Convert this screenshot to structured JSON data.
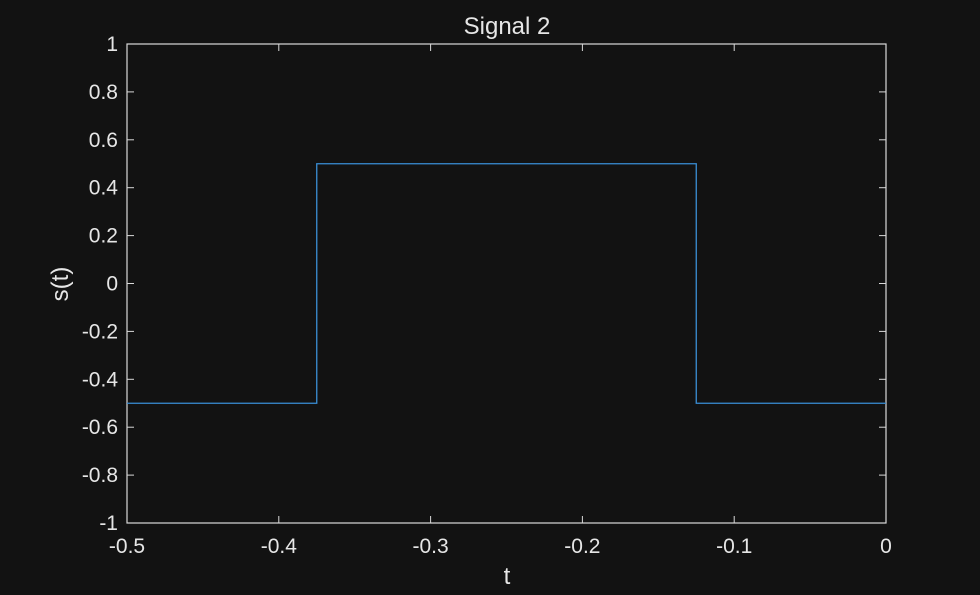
{
  "chart_data": {
    "type": "line",
    "title": "Signal 2",
    "xlabel": "t",
    "ylabel": "s(t)",
    "xlim": [
      -0.5,
      0
    ],
    "ylim": [
      -1,
      1
    ],
    "x_ticks": [
      -0.5,
      -0.4,
      -0.3,
      -0.2,
      -0.1,
      0
    ],
    "x_tick_labels": [
      "-0.5",
      "-0.4",
      "-0.3",
      "-0.2",
      "-0.1",
      "0"
    ],
    "y_ticks": [
      -1,
      -0.8,
      -0.6,
      -0.4,
      -0.2,
      0,
      0.2,
      0.4,
      0.6,
      0.8,
      1
    ],
    "y_tick_labels": [
      "-1",
      "-0.8",
      "-0.6",
      "-0.4",
      "-0.2",
      "0",
      "0.2",
      "0.4",
      "0.6",
      "0.8",
      "1"
    ],
    "grid": false,
    "series": [
      {
        "x": [
          -0.5,
          -0.375,
          -0.375,
          -0.125,
          -0.125,
          0
        ],
        "y": [
          -0.5,
          -0.5,
          0.5,
          0.5,
          -0.5,
          -0.5
        ],
        "color": "#3a8fd6"
      }
    ],
    "colors": {
      "background": "#121212",
      "axes": "#d9d9d9",
      "text": "#e6e6e6"
    }
  }
}
